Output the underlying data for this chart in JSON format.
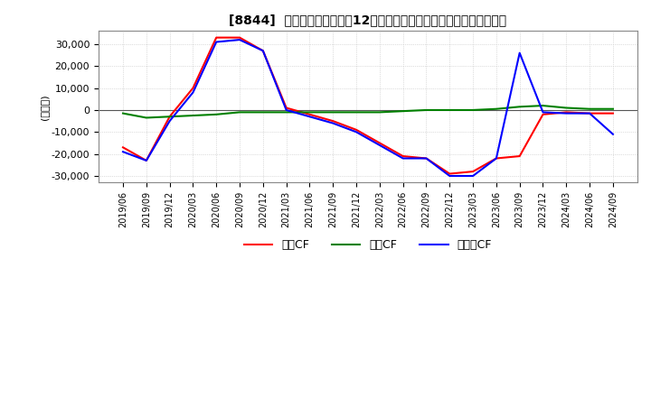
{
  "title": "[8844]  キャッシュフローの12か月移動合計の対前年同期増減額の推移",
  "ylabel": "(百万円)",
  "ylim": [
    -33000,
    36000
  ],
  "yticks": [
    -30000,
    -20000,
    -10000,
    0,
    10000,
    20000,
    30000
  ],
  "dates": [
    "2019/06",
    "2019/09",
    "2019/12",
    "2020/03",
    "2020/06",
    "2020/09",
    "2020/12",
    "2021/03",
    "2021/06",
    "2021/09",
    "2021/12",
    "2022/03",
    "2022/06",
    "2022/09",
    "2022/12",
    "2023/03",
    "2023/06",
    "2023/09",
    "2023/12",
    "2024/03",
    "2024/06",
    "2024/09"
  ],
  "eigyo_cf": [
    -17000,
    -23000,
    -3000,
    10000,
    33000,
    33000,
    27000,
    1000,
    -2000,
    -5000,
    -9000,
    -15000,
    -21000,
    -22000,
    -29000,
    -28000,
    -22000,
    -21000,
    -2000,
    -1000,
    -1500,
    -1500
  ],
  "toshi_cf": [
    -1500,
    -3500,
    -3000,
    -2500,
    -2000,
    -1000,
    -1000,
    -1000,
    -1000,
    -1000,
    -1000,
    -1000,
    -500,
    0,
    0,
    0,
    500,
    1500,
    2000,
    1000,
    500,
    500
  ],
  "free_cf": [
    -19000,
    -23000,
    -5000,
    8000,
    31000,
    32000,
    27000,
    0,
    -3000,
    -6000,
    -10000,
    -16000,
    -22000,
    -22000,
    -30000,
    -30000,
    -22000,
    26000,
    -1000,
    -1500,
    -1500,
    -11000
  ],
  "eigyo_color": "#ff0000",
  "toshi_color": "#008000",
  "free_color": "#0000ff",
  "background_color": "#ffffff",
  "grid_color": "#c0c0c0",
  "legend_labels": [
    "営業CF",
    "投資CF",
    "フリーCF"
  ]
}
